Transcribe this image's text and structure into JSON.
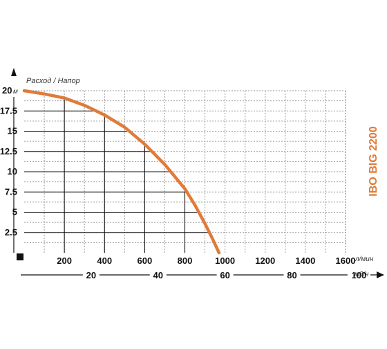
{
  "chart_data": {
    "type": "line",
    "title": "",
    "model_label": "IBO BIG 2200",
    "ylabel": "Расход / Напор",
    "y_unit": "м",
    "ylim": [
      0,
      20
    ],
    "y_ticks": [
      "2.5",
      "5",
      "7.5",
      "10",
      "12.5",
      "15",
      "17.5",
      "20"
    ],
    "x_unit": "л/мин",
    "xlim": [
      0,
      1600
    ],
    "x_ticks": [
      "200",
      "400",
      "600",
      "800",
      "1000",
      "1200",
      "1400",
      "1600"
    ],
    "x2_unit": "м3/ч",
    "x2_ticks": [
      "20",
      "40",
      "60",
      "80",
      "100"
    ],
    "grid": true,
    "series": [
      {
        "color": "#E07B39",
        "x": [
          0,
          100,
          200,
          300,
          400,
          500,
          600,
          700,
          800,
          850,
          900,
          940,
          970
        ],
        "y": [
          20,
          19.6,
          19.1,
          18.2,
          17.0,
          15.5,
          13.4,
          10.9,
          7.9,
          5.9,
          3.6,
          1.6,
          0
        ]
      }
    ]
  }
}
